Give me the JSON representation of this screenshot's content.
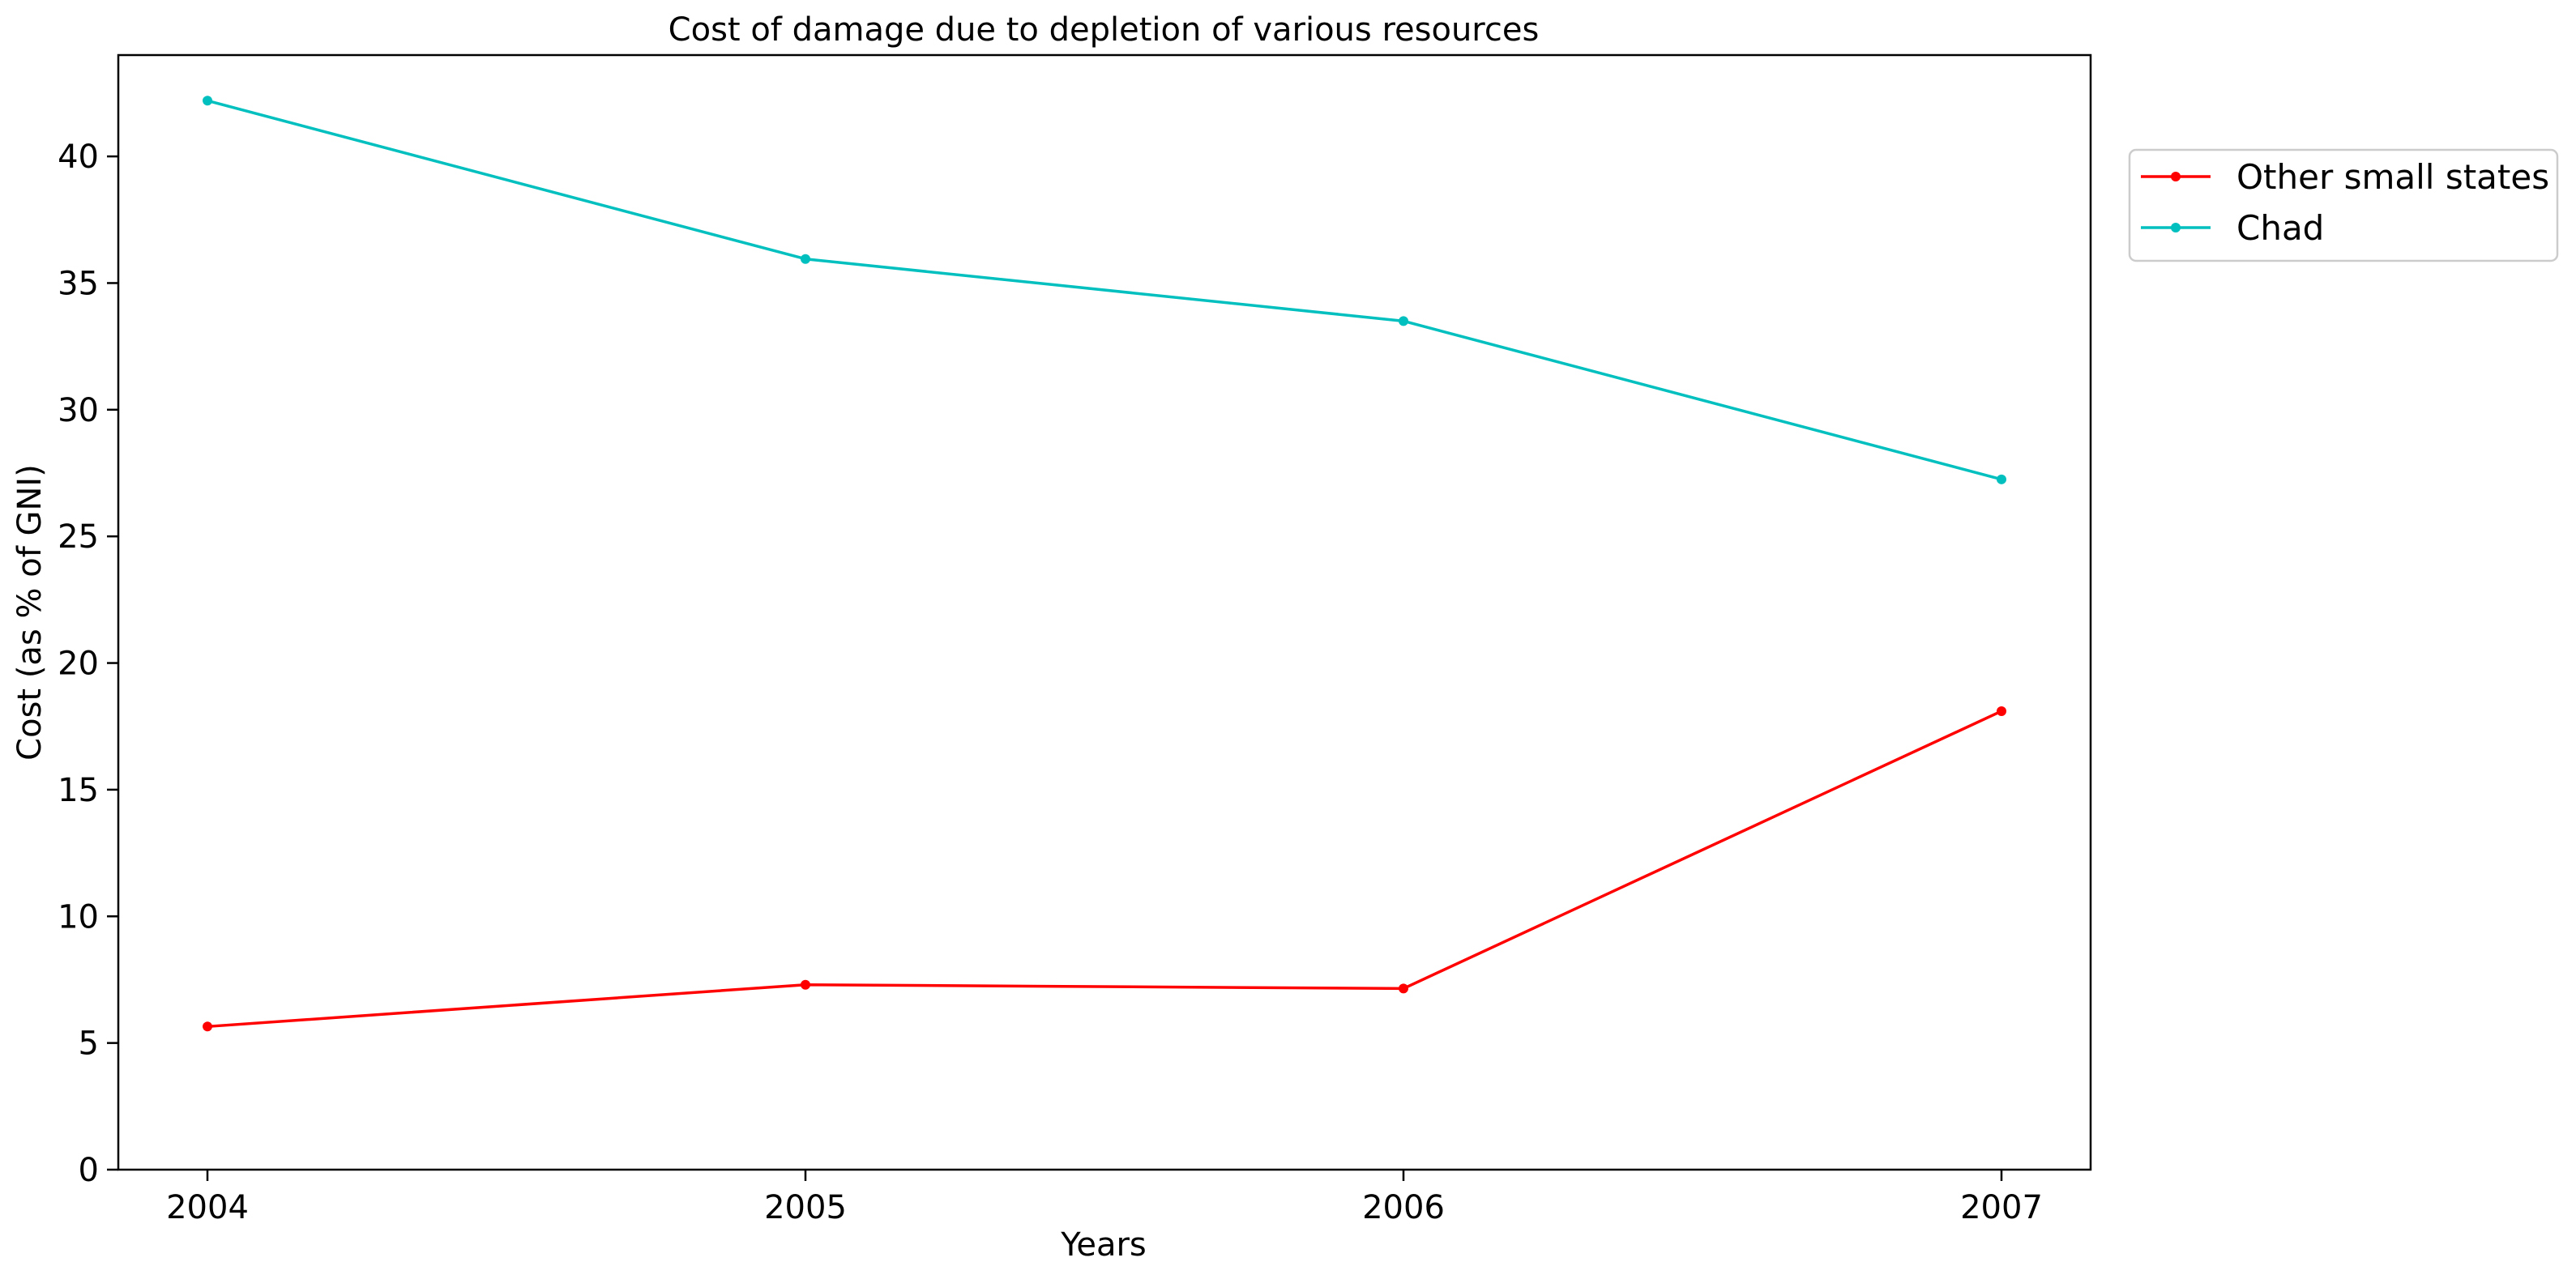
{
  "chart_data": {
    "type": "line",
    "title": "Cost of damage due to depletion of various resources",
    "xlabel": "Years",
    "ylabel": "Cost (as % of GNI)",
    "x": [
      "2004",
      "2005",
      "2006",
      "2007"
    ],
    "ylim": [
      0,
      44
    ],
    "yticks": [
      0,
      5,
      10,
      15,
      20,
      25,
      30,
      35,
      40
    ],
    "grid": false,
    "legend_position": "upper-right-outside",
    "series": [
      {
        "name": "Other small states",
        "color": "#ff0000",
        "values": [
          5.65,
          7.3,
          7.15,
          18.1
        ]
      },
      {
        "name": "Chad",
        "color": "#00bfbf",
        "values": [
          42.2,
          35.95,
          33.5,
          27.25
        ]
      }
    ]
  }
}
